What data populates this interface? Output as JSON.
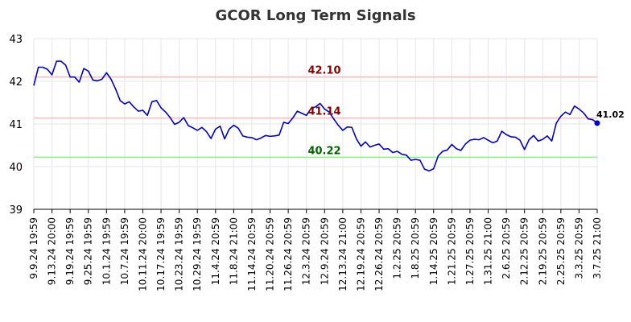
{
  "chart_data": {
    "type": "line",
    "title": "GCOR Long Term Signals",
    "xlabel": "",
    "ylabel": "",
    "ylim": [
      39,
      43
    ],
    "yticks": [
      "39",
      "40",
      "41",
      "42",
      "43"
    ],
    "grid": true,
    "x_tick_labels": [
      "9.9.24 19:59",
      "9.13.24 20:00",
      "9.19.24 19:59",
      "9.25.24 19:59",
      "10.1.24 19:59",
      "10.7.24 19:59",
      "10.11.24 20:00",
      "10.17.24 19:59",
      "10.23.24 19:59",
      "10.29.24 19:59",
      "11.4.24 20:59",
      "11.8.24 21:00",
      "11.14.24 20:59",
      "11.20.24 20:59",
      "11.26.24 20:59",
      "12.3.24 20:59",
      "12.9.24 20:59",
      "12.13.24 21:00",
      "12.19.24 20:59",
      "12.26.24 20:59",
      "1.2.25 20:59",
      "1.8.25 20:59",
      "1.14.25 20:59",
      "1.21.25 20:59",
      "1.27.25 20:59",
      "1.31.25 21:00",
      "2.6.25 20:59",
      "2.12.25 20:59",
      "2.19.25 20:59",
      "2.25.25 20:59",
      "3.3.25 20:59",
      "3.7.25 21:00"
    ],
    "reference_lines": [
      {
        "value": 42.1,
        "label": "42.10",
        "line_color": "#ffbbbb",
        "label_color": "#8b0000"
      },
      {
        "value": 41.14,
        "label": "41.14",
        "line_color": "#ffbbbb",
        "label_color": "#8b0000"
      },
      {
        "value": 40.22,
        "label": "40.22",
        "line_color": "#90ee90",
        "label_color": "#006400"
      }
    ],
    "last_point_label": "41.02",
    "series": [
      {
        "color": "#0000cc",
        "values": [
          41.9,
          42.33,
          42.33,
          42.28,
          42.15,
          42.47,
          42.47,
          42.38,
          42.1,
          42.1,
          41.98,
          42.3,
          42.24,
          42.03,
          42.01,
          42.05,
          42.2,
          42.05,
          41.82,
          41.55,
          41.47,
          41.52,
          41.4,
          41.3,
          41.32,
          41.2,
          41.52,
          41.55,
          41.38,
          41.28,
          41.15,
          40.99,
          41.04,
          41.15,
          40.96,
          40.91,
          40.85,
          40.92,
          40.82,
          40.66,
          40.88,
          40.95,
          40.65,
          40.88,
          40.97,
          40.9,
          40.72,
          40.69,
          40.68,
          40.63,
          40.67,
          40.73,
          40.71,
          40.72,
          40.74,
          41.04,
          41.01,
          41.14,
          41.3,
          41.25,
          41.2,
          41.36,
          41.4,
          41.48,
          41.35,
          41.28,
          41.12,
          40.97,
          40.85,
          40.93,
          40.92,
          40.65,
          40.48,
          40.58,
          40.46,
          40.5,
          40.53,
          40.41,
          40.42,
          40.33,
          40.36,
          40.29,
          40.27,
          40.15,
          40.17,
          40.15,
          39.94,
          39.9,
          39.95,
          40.25,
          40.36,
          40.39,
          40.52,
          40.42,
          40.38,
          40.53,
          40.62,
          40.64,
          40.63,
          40.68,
          40.62,
          40.56,
          40.6,
          40.83,
          40.75,
          40.7,
          40.69,
          40.62,
          40.4,
          40.63,
          40.73,
          40.6,
          40.64,
          40.72,
          40.6,
          41.02,
          41.18,
          41.28,
          41.22,
          41.42,
          41.35,
          41.26,
          41.12,
          41.1,
          41.02
        ]
      }
    ]
  }
}
